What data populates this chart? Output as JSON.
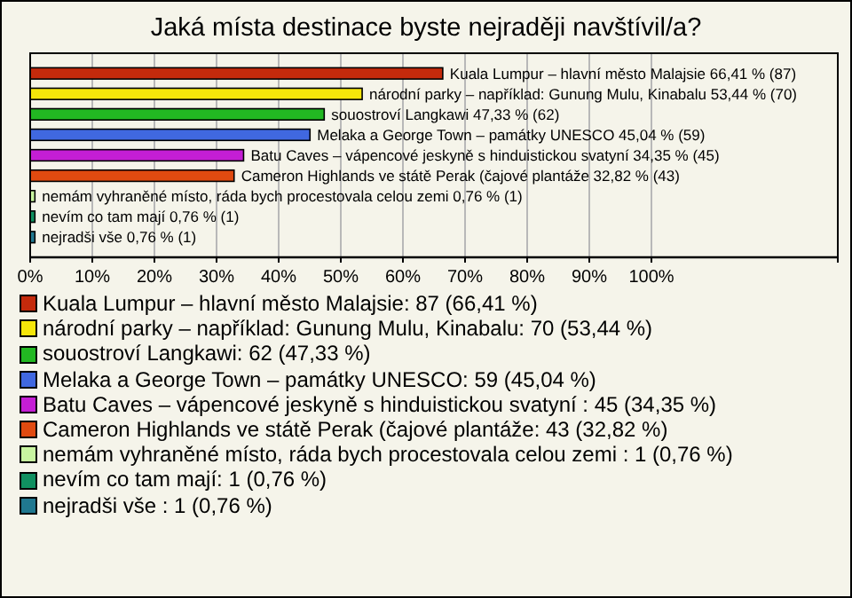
{
  "chart_data": {
    "type": "bar",
    "orientation": "horizontal",
    "stacked": true,
    "title": "Jaká místa destinace byste nejraději navštívil/a?",
    "categories": [
      null,
      null,
      null,
      null,
      null,
      null,
      null,
      null,
      null
    ],
    "series": [
      {
        "name": "Kuala Lumpur – hlavní město Malajsie: 87 (66,41 %)",
        "color": "#c42a0c",
        "values": [
          66.41,
          null,
          null,
          null,
          null,
          null,
          null,
          null,
          null
        ],
        "value_labels": [
          "Kuala Lumpur – hlavní město Malajsie 66,41 % (87)",
          null,
          null,
          null,
          null,
          null,
          null,
          null,
          null
        ]
      },
      {
        "name": "národní parky – například: Gunung Mulu, Kinabalu: 70 (53,44 %)",
        "color": "#f5e60a",
        "values": [
          null,
          53.44,
          null,
          null,
          null,
          null,
          null,
          null,
          null
        ],
        "value_labels": [
          null,
          "národní parky – například: Gunung Mulu, Kinabalu 53,44 % (70)",
          null,
          null,
          null,
          null,
          null,
          null,
          null
        ]
      },
      {
        "name": "souostroví Langkawi: 62 (47,33 %)",
        "color": "#22b822",
        "values": [
          null,
          null,
          47.33,
          null,
          null,
          null,
          null,
          null,
          null
        ],
        "value_labels": [
          null,
          null,
          "souostroví Langkawi 47,33 % (62)",
          null,
          null,
          null,
          null,
          null,
          null
        ]
      },
      {
        "name": "Melaka a George Town – památky UNESCO: 59 (45,04 %)",
        "color": "#4068e0",
        "values": [
          null,
          null,
          null,
          45.04,
          null,
          null,
          null,
          null,
          null
        ],
        "value_labels": [
          null,
          null,
          null,
          "Melaka a George Town – památky UNESCO 45,04 % (59)",
          null,
          null,
          null,
          null,
          null
        ]
      },
      {
        "name": "Batu Caves – vápencové jeskyně s hinduistickou svatyní : 45 (34,35 %)",
        "color": "#c41ed4",
        "values": [
          null,
          null,
          null,
          null,
          34.35,
          null,
          null,
          null,
          null
        ],
        "value_labels": [
          null,
          null,
          null,
          null,
          "Batu Caves – vápencové jeskyně s hinduistickou svatyní  34,35 % (45)",
          null,
          null,
          null,
          null
        ]
      },
      {
        "name": "Cameron Highlands ve státě Perak (čajové plantáže: 43 (32,82 %)",
        "color": "#e04a10",
        "values": [
          null,
          null,
          null,
          null,
          null,
          32.82,
          null,
          null,
          null
        ],
        "value_labels": [
          null,
          null,
          null,
          null,
          null,
          "Cameron Highlands ve státě Perak (čajové plantáže 32,82 % (43)",
          null,
          null,
          null
        ]
      },
      {
        "name": "nemám vyhraněné místo, ráda bych procestovala celou zemi : 1 (0,76 %)",
        "color": "#c8f5a0",
        "values": [
          null,
          null,
          null,
          null,
          null,
          null,
          0.76,
          null,
          null
        ],
        "value_labels": [
          null,
          null,
          null,
          null,
          null,
          null,
          "nemám vyhraněné místo, ráda bych procestovala celou zemi  0,76 % (1)",
          null,
          null
        ]
      },
      {
        "name": "nevím co tam mají: 1 (0,76 %)",
        "color": "#109060",
        "values": [
          null,
          null,
          null,
          null,
          null,
          null,
          null,
          0.76,
          null
        ],
        "value_labels": [
          null,
          null,
          null,
          null,
          null,
          null,
          null,
          "nevím co tam mají 0,76 % (1)",
          null
        ]
      },
      {
        "name": "nejradši vše : 1 (0,76 %)",
        "color": "#207890",
        "values": [
          null,
          null,
          null,
          null,
          null,
          null,
          null,
          null,
          0.76
        ],
        "value_labels": [
          null,
          null,
          null,
          null,
          null,
          null,
          null,
          null,
          "nejradši vše  0,76 % (1)"
        ]
      }
    ],
    "xlim": [
      0,
      130
    ],
    "xticks": [
      {
        "value": 0,
        "label": "0%"
      },
      {
        "value": 10,
        "label": "10%"
      },
      {
        "value": 20,
        "label": "20%"
      },
      {
        "value": 30,
        "label": "30%"
      },
      {
        "value": 40,
        "label": "40%"
      },
      {
        "value": 50,
        "label": "50%"
      },
      {
        "value": 60,
        "label": "60%"
      },
      {
        "value": 70,
        "label": "70%"
      },
      {
        "value": 80,
        "label": "80%"
      },
      {
        "value": 90,
        "label": "90%"
      },
      {
        "value": 100,
        "label": "100%"
      },
      {
        "value": 130,
        "label": null
      }
    ],
    "grid": "x",
    "tick_labels": "x",
    "legend": "bottom"
  }
}
